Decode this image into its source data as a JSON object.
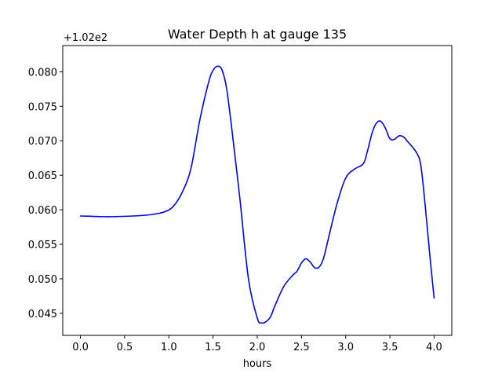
{
  "chart_data": {
    "type": "line",
    "title": "Water Depth h at gauge 135",
    "xlabel": "hours",
    "ylabel": "",
    "y_offset_label": "+1.02e2",
    "xlim": [
      -0.2,
      4.2
    ],
    "ylim": [
      0.0418,
      0.0838
    ],
    "xticks": [
      0.0,
      0.5,
      1.0,
      1.5,
      2.0,
      2.5,
      3.0,
      3.5,
      4.0
    ],
    "xtick_labels": [
      "0.0",
      "0.5",
      "1.0",
      "1.5",
      "2.0",
      "2.5",
      "3.0",
      "3.5",
      "4.0"
    ],
    "yticks": [
      0.045,
      0.05,
      0.055,
      0.06,
      0.065,
      0.07,
      0.075,
      0.08
    ],
    "ytick_labels": [
      "0.045",
      "0.050",
      "0.055",
      "0.060",
      "0.065",
      "0.070",
      "0.075",
      "0.080"
    ],
    "grid": false,
    "line_color": "#0000ff",
    "series": [
      {
        "x": [
          0.0,
          0.3,
          0.6,
          0.8,
          0.95,
          1.05,
          1.15,
          1.25,
          1.35,
          1.45,
          1.5,
          1.55,
          1.6,
          1.65,
          1.7,
          1.8,
          1.9,
          2.0,
          2.05,
          2.1,
          2.15,
          2.2,
          2.3,
          2.4,
          2.45,
          2.5,
          2.55,
          2.6,
          2.65,
          2.7,
          2.75,
          2.8,
          2.9,
          3.0,
          3.1,
          3.2,
          3.25,
          3.3,
          3.35,
          3.4,
          3.45,
          3.5,
          3.55,
          3.6,
          3.65,
          3.7,
          3.8,
          3.85,
          3.9,
          3.95,
          4.0
        ],
        "y": [
          0.0591,
          0.059,
          0.0591,
          0.0593,
          0.0597,
          0.0605,
          0.0625,
          0.066,
          0.073,
          0.0785,
          0.0802,
          0.0808,
          0.0803,
          0.0778,
          0.073,
          0.062,
          0.05,
          0.0443,
          0.0436,
          0.0438,
          0.0445,
          0.0461,
          0.0489,
          0.0505,
          0.0511,
          0.0523,
          0.0529,
          0.0524,
          0.0516,
          0.0517,
          0.053,
          0.0556,
          0.0608,
          0.0646,
          0.0659,
          0.0667,
          0.0687,
          0.0712,
          0.0726,
          0.0728,
          0.0718,
          0.0703,
          0.0702,
          0.0707,
          0.0706,
          0.0699,
          0.0683,
          0.0664,
          0.0605,
          0.0536,
          0.0472
        ]
      }
    ]
  }
}
